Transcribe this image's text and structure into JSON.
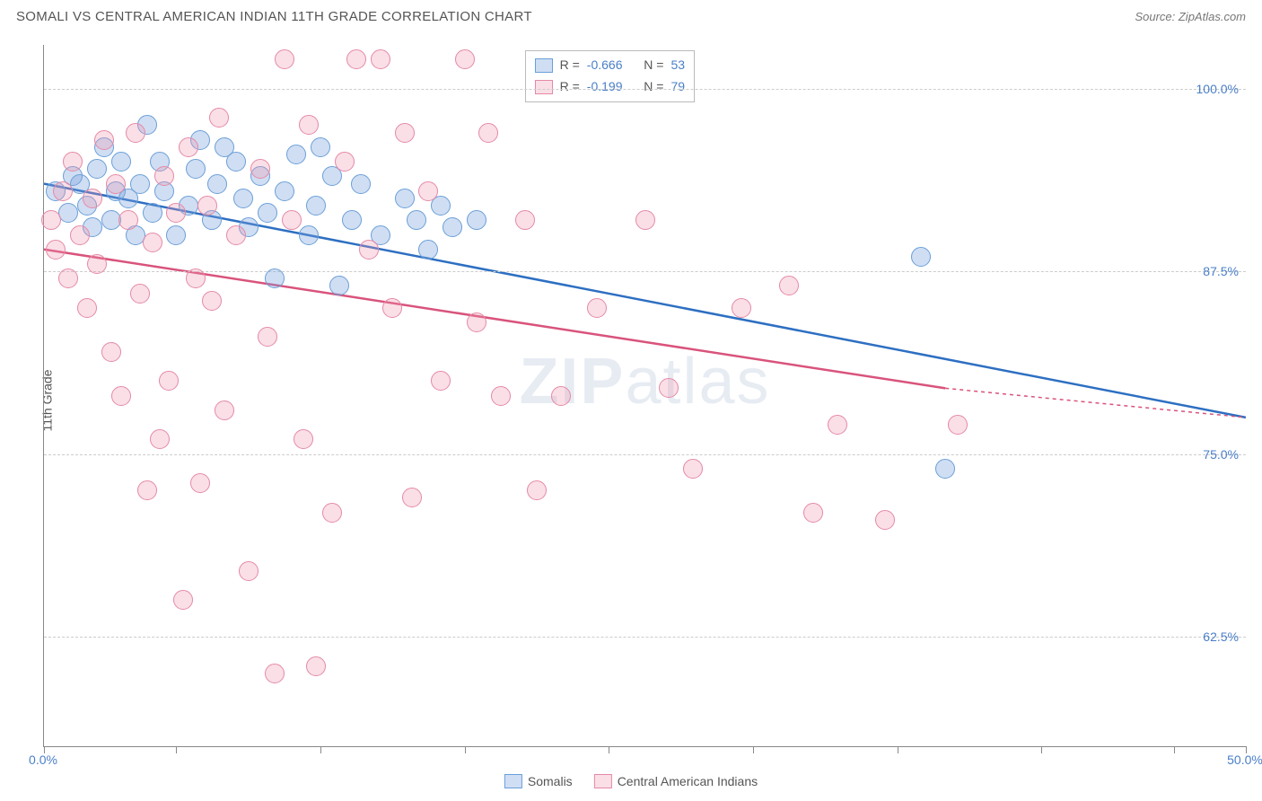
{
  "title": "SOMALI VS CENTRAL AMERICAN INDIAN 11TH GRADE CORRELATION CHART",
  "source": "Source: ZipAtlas.com",
  "ylabel": "11th Grade",
  "watermark": {
    "bold": "ZIP",
    "rest": "atlas"
  },
  "chart": {
    "type": "scatter",
    "xlim": [
      0,
      50
    ],
    "ylim": [
      55,
      103
    ],
    "x_ticks": [
      0,
      5.5,
      11.5,
      17.5,
      23.5,
      29.5,
      35.5,
      41.5,
      47,
      50
    ],
    "x_tick_labels": {
      "0": "0.0%",
      "50": "50.0%"
    },
    "y_ticks": [
      62.5,
      75.0,
      87.5,
      100.0
    ],
    "y_tick_labels": [
      "62.5%",
      "75.0%",
      "87.5%",
      "100.0%"
    ],
    "background_color": "#ffffff",
    "grid_color": "#cccccc",
    "axis_color": "#888888",
    "label_color": "#4a7fc8",
    "series": [
      {
        "name": "Somalis",
        "fill": "rgba(120,160,220,0.35)",
        "stroke": "#6a9fd8",
        "line_color": "#2d6fc2",
        "R": "-0.666",
        "N": "53",
        "trend": {
          "x1": 0,
          "y1": 93.5,
          "x2": 50,
          "y2": 77.5
        },
        "points": [
          [
            0.5,
            93
          ],
          [
            1,
            91.5
          ],
          [
            1.2,
            94
          ],
          [
            1.5,
            93.5
          ],
          [
            1.8,
            92
          ],
          [
            2,
            90.5
          ],
          [
            2.2,
            94.5
          ],
          [
            2.5,
            96
          ],
          [
            2.8,
            91
          ],
          [
            3,
            93
          ],
          [
            3.2,
            95
          ],
          [
            3.5,
            92.5
          ],
          [
            3.8,
            90
          ],
          [
            4,
            93.5
          ],
          [
            4.3,
            97.5
          ],
          [
            4.5,
            91.5
          ],
          [
            4.8,
            95
          ],
          [
            5,
            93
          ],
          [
            5.5,
            90
          ],
          [
            6,
            92
          ],
          [
            6.3,
            94.5
          ],
          [
            6.5,
            96.5
          ],
          [
            7,
            91
          ],
          [
            7.2,
            93.5
          ],
          [
            7.5,
            96
          ],
          [
            8,
            95
          ],
          [
            8.3,
            92.5
          ],
          [
            8.5,
            90.5
          ],
          [
            9,
            94
          ],
          [
            9.3,
            91.5
          ],
          [
            9.6,
            87
          ],
          [
            10,
            93
          ],
          [
            10.5,
            95.5
          ],
          [
            11,
            90
          ],
          [
            11.3,
            92
          ],
          [
            11.5,
            96
          ],
          [
            12,
            94
          ],
          [
            12.3,
            86.5
          ],
          [
            12.8,
            91
          ],
          [
            13.2,
            93.5
          ],
          [
            14,
            90
          ],
          [
            15,
            92.5
          ],
          [
            15.5,
            91
          ],
          [
            16,
            89
          ],
          [
            16.5,
            92
          ],
          [
            17,
            90.5
          ],
          [
            18,
            91
          ],
          [
            36.5,
            88.5
          ],
          [
            37.5,
            74
          ]
        ]
      },
      {
        "name": "Central American Indians",
        "fill": "rgba(240,150,175,0.3)",
        "stroke": "#e589a6",
        "line_color": "#d9537c",
        "R": "-0.199",
        "N": "79",
        "trend": {
          "x1": 0,
          "y1": 89,
          "x2": 37.5,
          "y2": 79.5,
          "x2_dash": 50,
          "y2_dash": 77.5
        },
        "points": [
          [
            0.3,
            91
          ],
          [
            0.5,
            89
          ],
          [
            0.8,
            93
          ],
          [
            1,
            87
          ],
          [
            1.2,
            95
          ],
          [
            1.5,
            90
          ],
          [
            1.8,
            85
          ],
          [
            2,
            92.5
          ],
          [
            2.2,
            88
          ],
          [
            2.5,
            96.5
          ],
          [
            2.8,
            82
          ],
          [
            3,
            93.5
          ],
          [
            3.2,
            79
          ],
          [
            3.5,
            91
          ],
          [
            3.8,
            97
          ],
          [
            4,
            86
          ],
          [
            4.3,
            72.5
          ],
          [
            4.5,
            89.5
          ],
          [
            4.8,
            76
          ],
          [
            5,
            94
          ],
          [
            5.2,
            80
          ],
          [
            5.5,
            91.5
          ],
          [
            5.8,
            65
          ],
          [
            6,
            96
          ],
          [
            6.3,
            87
          ],
          [
            6.5,
            73
          ],
          [
            6.8,
            92
          ],
          [
            7,
            85.5
          ],
          [
            7.3,
            98
          ],
          [
            7.5,
            78
          ],
          [
            8,
            90
          ],
          [
            8.5,
            67
          ],
          [
            9,
            94.5
          ],
          [
            9.3,
            83
          ],
          [
            9.6,
            60
          ],
          [
            10,
            102
          ],
          [
            10.3,
            91
          ],
          [
            10.8,
            76
          ],
          [
            11,
            97.5
          ],
          [
            11.3,
            60.5
          ],
          [
            12,
            71
          ],
          [
            12.5,
            95
          ],
          [
            13,
            102
          ],
          [
            13.5,
            89
          ],
          [
            14,
            102
          ],
          [
            14.5,
            85
          ],
          [
            15,
            97
          ],
          [
            15.3,
            72
          ],
          [
            16,
            93
          ],
          [
            16.5,
            80
          ],
          [
            17.5,
            102
          ],
          [
            18,
            84
          ],
          [
            18.5,
            97
          ],
          [
            19,
            79
          ],
          [
            20,
            91
          ],
          [
            20.5,
            72.5
          ],
          [
            21.5,
            79
          ],
          [
            23,
            85
          ],
          [
            25,
            91
          ],
          [
            26,
            79.5
          ],
          [
            27,
            74
          ],
          [
            29,
            85
          ],
          [
            31,
            86.5
          ],
          [
            32,
            71
          ],
          [
            33,
            77
          ],
          [
            35,
            70.5
          ],
          [
            38,
            77
          ]
        ]
      }
    ]
  }
}
